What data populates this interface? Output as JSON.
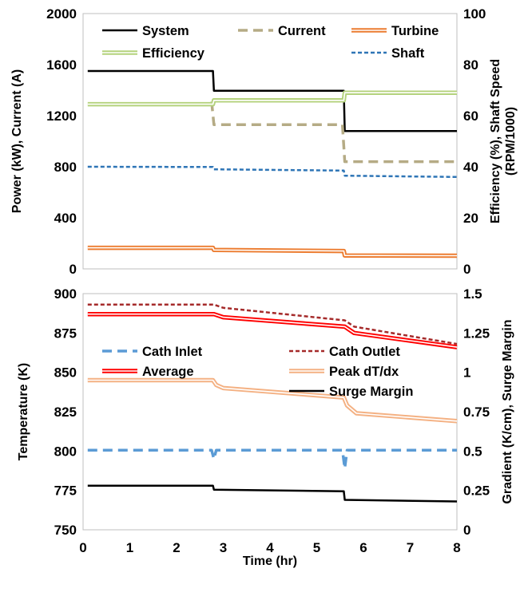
{
  "chart_data": [
    {
      "type": "line",
      "ylabel": "Power (kW), Current (A)",
      "y2label": "Efficiency (%), Shaft Speed (RPM/1000)",
      "xlim": [
        0,
        8
      ],
      "ylim": [
        0,
        2000
      ],
      "y2lim": [
        0,
        100
      ],
      "yticks": [
        "0",
        "400",
        "800",
        "1200",
        "1600",
        "2000"
      ],
      "y2ticks": [
        "0",
        "20",
        "40",
        "60",
        "80",
        "100"
      ],
      "legend_position": "top",
      "grid": false,
      "series": [
        {
          "name": "System",
          "axis": "left",
          "color": "#000000",
          "style": "solid",
          "x": [
            0.1,
            2.78,
            2.8,
            5.58,
            5.6,
            8.0
          ],
          "y": [
            1550,
            1550,
            1395,
            1395,
            1080,
            1080
          ]
        },
        {
          "name": "Current",
          "axis": "left",
          "color": "#b5ab85",
          "style": "dashed",
          "x": [
            2.75,
            2.8,
            5.55,
            5.6,
            8.0
          ],
          "y": [
            1310,
            1130,
            1130,
            840,
            840
          ]
        },
        {
          "name": "Turbine",
          "axis": "left",
          "color": "#ec7c30",
          "style": "double",
          "x": [
            0.1,
            2.78,
            2.8,
            5.58,
            5.6,
            8.0
          ],
          "y": [
            165,
            165,
            148,
            140,
            105,
            103
          ]
        },
        {
          "name": "Efficiency",
          "axis": "right",
          "color": "#b4d27c",
          "style": "double",
          "x": [
            0.1,
            2.78,
            2.8,
            5.58,
            5.6,
            8.0
          ],
          "y": [
            64.5,
            64.5,
            66,
            66,
            69,
            69
          ]
        },
        {
          "name": "Shaft",
          "axis": "right",
          "color": "#2e75b6",
          "style": "dotted",
          "x": [
            0.1,
            2.78,
            2.8,
            5.58,
            5.6,
            8.0
          ],
          "y": [
            40,
            39.9,
            39,
            38.5,
            36.5,
            36
          ]
        }
      ]
    },
    {
      "type": "line",
      "xlabel": "Time (hr)",
      "ylabel": "Temperature (K)",
      "y2label": "Gradient (K/cm), Surge Margin",
      "xlim": [
        0,
        8
      ],
      "xticks": [
        "0",
        "1",
        "2",
        "3",
        "4",
        "5",
        "6",
        "7",
        "8"
      ],
      "ylim": [
        750,
        900
      ],
      "y2lim": [
        0,
        1.5
      ],
      "yticks": [
        "750",
        "775",
        "800",
        "825",
        "850",
        "875",
        "900"
      ],
      "y2ticks": [
        "0",
        "0.25",
        "0.5",
        "0.75",
        "1",
        "1.25",
        "1.5"
      ],
      "legend_position": "middle",
      "grid": false,
      "series": [
        {
          "name": "Cath Inlet",
          "axis": "left",
          "color": "#5b9bd5",
          "style": "dashed",
          "x": [
            0.1,
            2.75,
            2.8,
            2.85,
            5.55,
            5.6,
            5.65,
            8.0
          ],
          "y": [
            800.5,
            800.5,
            795,
            800.5,
            800.5,
            789,
            800.5,
            800.5
          ]
        },
        {
          "name": "Cath Outlet",
          "axis": "left",
          "color": "#a52a2a",
          "style": "dotted",
          "x": [
            0.1,
            2.8,
            3.0,
            5.6,
            5.8,
            8.0
          ],
          "y": [
            893,
            893,
            891,
            883,
            879,
            868
          ]
        },
        {
          "name": "Average",
          "axis": "left",
          "color": "#ff0000",
          "style": "double",
          "x": [
            0.1,
            2.8,
            3.0,
            5.6,
            5.8,
            8.0
          ],
          "y": [
            887,
            887,
            885,
            879,
            875,
            866
          ]
        },
        {
          "name": "Peak dT/dx",
          "axis": "right",
          "color": "#f4b183",
          "style": "double",
          "x": [
            0.1,
            2.78,
            2.85,
            3.0,
            5.58,
            5.65,
            5.85,
            8.0
          ],
          "y": [
            0.95,
            0.95,
            0.92,
            0.9,
            0.84,
            0.79,
            0.74,
            0.69
          ]
        },
        {
          "name": "Surge Margin",
          "axis": "right",
          "color": "#000000",
          "style": "solid",
          "x": [
            0.1,
            2.78,
            2.8,
            5.58,
            5.6,
            8.0
          ],
          "y": [
            0.28,
            0.28,
            0.255,
            0.245,
            0.19,
            0.18
          ]
        }
      ]
    }
  ]
}
